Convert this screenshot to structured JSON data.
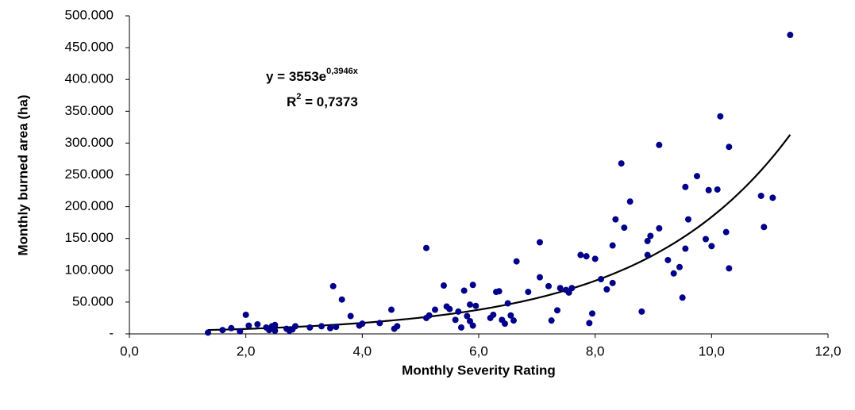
{
  "chart_data": {
    "type": "scatter",
    "x_label": "Monthly Severity Rating",
    "y_label": "Monthly burned area (ha)",
    "color": "#00008b",
    "x": [
      1.35,
      1.6,
      1.75,
      1.9,
      2.0,
      2.05,
      2.2,
      2.35,
      2.4,
      2.45,
      2.5,
      2.5,
      2.7,
      2.75,
      2.8,
      2.85,
      3.1,
      3.3,
      3.45,
      3.5,
      3.55,
      3.65,
      3.8,
      3.95,
      4.0,
      4.3,
      4.5,
      4.55,
      4.6,
      5.1,
      5.1,
      5.15,
      5.25,
      5.4,
      5.45,
      5.5,
      5.6,
      5.65,
      5.7,
      5.75,
      5.8,
      5.85,
      5.85,
      5.9,
      5.9,
      5.95,
      6.2,
      6.25,
      6.3,
      6.35,
      6.4,
      6.45,
      6.5,
      6.55,
      6.6,
      6.65,
      6.85,
      7.05,
      7.05,
      7.2,
      7.25,
      7.35,
      7.4,
      7.5,
      7.55,
      7.6,
      7.75,
      7.85,
      7.9,
      7.95,
      8.0,
      8.1,
      8.2,
      8.3,
      8.3,
      8.35,
      8.45,
      8.5,
      8.6,
      8.8,
      8.9,
      8.9,
      8.95,
      9.1,
      9.1,
      9.25,
      9.35,
      9.45,
      9.5,
      9.55,
      9.55,
      9.6,
      9.75,
      9.9,
      9.95,
      10.0,
      10.1,
      10.15,
      10.25,
      10.3,
      10.3,
      10.85,
      10.9,
      11.05,
      11.35
    ],
    "values": [
      2000,
      6000,
      9000,
      4000,
      30000,
      13000,
      15000,
      10000,
      6000,
      12000,
      14000,
      5000,
      8000,
      5000,
      7000,
      12000,
      10000,
      12000,
      9000,
      75000,
      11000,
      54000,
      28000,
      13000,
      16000,
      17000,
      38000,
      8000,
      12000,
      135000,
      25000,
      29000,
      38000,
      76000,
      43000,
      39000,
      22000,
      35000,
      10000,
      68000,
      28000,
      20000,
      46000,
      13000,
      77000,
      44000,
      25000,
      30000,
      66000,
      67000,
      22000,
      16000,
      48000,
      29000,
      21000,
      114000,
      66000,
      144000,
      89000,
      75000,
      21000,
      37000,
      72000,
      69000,
      65000,
      72000,
      124000,
      122000,
      17000,
      32000,
      118000,
      86000,
      70000,
      139000,
      80000,
      180000,
      268000,
      167000,
      208000,
      35000,
      146000,
      124000,
      154000,
      297000,
      166000,
      116000,
      95000,
      105000,
      57000,
      231000,
      134000,
      180000,
      248000,
      149000,
      226000,
      138000,
      227000,
      342000,
      160000,
      103000,
      294000,
      217000,
      168000,
      214000,
      470000
    ],
    "trendline": {
      "type": "exponential",
      "a": 3553,
      "b": 0.3946
    },
    "equation": {
      "text": "y = 3553e",
      "exponent": "0,3946x"
    },
    "r_squared": {
      "symbol": "R",
      "exponent": "2",
      "text": " = 0,7373"
    },
    "xlim": [
      0,
      12
    ],
    "xticks": [
      {
        "value": 0,
        "label": "0,0"
      },
      {
        "value": 2,
        "label": "2,0"
      },
      {
        "value": 4,
        "label": "4,0"
      },
      {
        "value": 6,
        "label": "6,0"
      },
      {
        "value": 8,
        "label": "8,0"
      },
      {
        "value": 10,
        "label": "10,0"
      },
      {
        "value": 12,
        "label": "12,0"
      }
    ],
    "ylim": [
      0,
      500000
    ],
    "yticks": [
      {
        "value": 0,
        "label": "-"
      },
      {
        "value": 50000,
        "label": "50.000"
      },
      {
        "value": 100000,
        "label": "100.000"
      },
      {
        "value": 150000,
        "label": "150.000"
      },
      {
        "value": 200000,
        "label": "200.000"
      },
      {
        "value": 250000,
        "label": "250.000"
      },
      {
        "value": 300000,
        "label": "300.000"
      },
      {
        "value": 350000,
        "label": "350.000"
      },
      {
        "value": 400000,
        "label": "400.000"
      },
      {
        "value": 450000,
        "label": "450.000"
      },
      {
        "value": 500000,
        "label": "500.000"
      }
    ],
    "grid": false
  }
}
